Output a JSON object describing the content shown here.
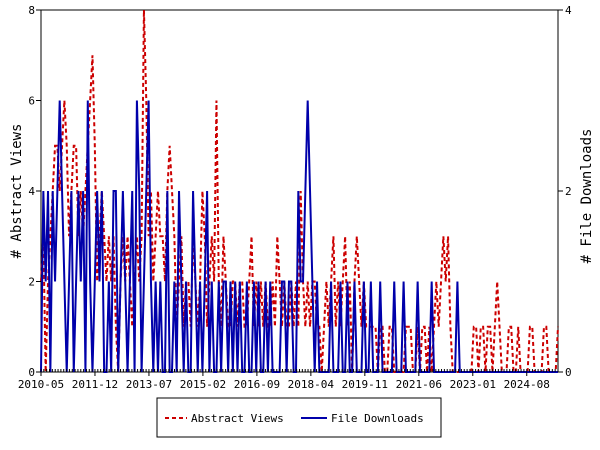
{
  "chart_data": {
    "type": "line",
    "x_ticks": [
      "2010-05",
      "2011-12",
      "2013-07",
      "2015-02",
      "2016-09",
      "2018-04",
      "2019-11",
      "2021-06",
      "2023-01",
      "2024-08"
    ],
    "x_range": [
      "2010-05",
      "2025-07"
    ],
    "left_axis": {
      "label": "# Abstract Views",
      "ylim": [
        0,
        8
      ],
      "ticks": [
        0,
        2,
        4,
        6,
        8
      ]
    },
    "right_axis": {
      "label": "# File Downloads",
      "ylim": [
        0,
        4
      ],
      "ticks": [
        0,
        2,
        4
      ]
    },
    "legend_position": "bottom-center",
    "grid": false,
    "series": [
      {
        "name": "Abstract Views",
        "axis": "left",
        "color": "#cc0000",
        "style": "dashed",
        "values": [
          2,
          3,
          0,
          2,
          3,
          4,
          5,
          5,
          4,
          5,
          6,
          5,
          3,
          4,
          5,
          5,
          3,
          4,
          3,
          4,
          5,
          6,
          7,
          5,
          2,
          3,
          4,
          3,
          2,
          3,
          2,
          3,
          1,
          0,
          2,
          3,
          2,
          3,
          2,
          1,
          2,
          3,
          2,
          3,
          8,
          6,
          3,
          4,
          2,
          3,
          4,
          3,
          3,
          2,
          4,
          5,
          4,
          3,
          1,
          2,
          3,
          1,
          2,
          2,
          1,
          3,
          2,
          1,
          2,
          4,
          3,
          1,
          2,
          3,
          2,
          6,
          2,
          1,
          3,
          2,
          1,
          1,
          2,
          2,
          1,
          2,
          2,
          1,
          1,
          2,
          3,
          1,
          2,
          1,
          2,
          1,
          2,
          1,
          1,
          2,
          1,
          3,
          2,
          1,
          2,
          1,
          1,
          2,
          1,
          2,
          1,
          4,
          2,
          1,
          2,
          1,
          2,
          2,
          1,
          1,
          0,
          1,
          2,
          1,
          2,
          3,
          1,
          2,
          1,
          2,
          3,
          1,
          2,
          0,
          2,
          3,
          2,
          1,
          2,
          1,
          1,
          1,
          1,
          1,
          0,
          1,
          1,
          0,
          0,
          1,
          1,
          0,
          0,
          0,
          0,
          0,
          1,
          1,
          1,
          0,
          0,
          1,
          0,
          1,
          1,
          0,
          1,
          0,
          1,
          2,
          1,
          2,
          3,
          2,
          3,
          1,
          0,
          0,
          0,
          0,
          0,
          0,
          0,
          0,
          0,
          1,
          1,
          0,
          1,
          1,
          0,
          1,
          1,
          0,
          1,
          2,
          1,
          0,
          0,
          0,
          1,
          1,
          0,
          0,
          1,
          0,
          0,
          0,
          0,
          1,
          1,
          0,
          0,
          0,
          0,
          1,
          1,
          0,
          0,
          0,
          0,
          1
        ]
      },
      {
        "name": "File Downloads",
        "axis": "right",
        "color": "#0000aa",
        "style": "solid",
        "values": [
          0,
          2,
          1,
          2,
          0,
          2,
          1,
          2,
          3,
          2,
          1,
          0,
          1,
          2,
          0,
          1,
          2,
          1,
          2,
          0,
          3,
          1,
          0,
          1,
          2,
          1,
          2,
          0,
          0,
          1,
          0,
          2,
          2,
          0,
          1,
          2,
          1,
          0,
          1,
          2,
          0,
          3,
          2,
          0,
          1,
          2,
          3,
          1,
          0,
          1,
          0,
          1,
          0,
          0,
          2,
          0,
          0,
          1,
          0,
          2,
          1,
          0,
          1,
          0,
          0,
          2,
          1,
          0,
          1,
          0,
          1,
          2,
          0,
          1,
          0,
          0,
          1,
          0,
          1,
          1,
          0,
          1,
          0,
          1,
          0,
          1,
          0,
          0,
          1,
          0,
          0,
          1,
          0,
          1,
          0,
          0,
          1,
          0,
          1,
          0,
          0,
          0,
          0,
          1,
          1,
          0,
          1,
          1,
          0,
          0,
          2,
          1,
          1,
          2,
          3,
          2,
          1,
          0,
          1,
          0,
          0,
          0,
          0,
          0,
          1,
          0,
          0,
          0,
          1,
          0,
          0,
          1,
          0,
          0,
          1,
          0,
          0,
          0,
          1,
          0,
          0,
          1,
          0,
          0,
          0,
          1,
          0,
          0,
          0,
          0,
          0,
          1,
          0,
          0,
          0,
          1,
          0,
          0,
          0,
          0,
          0,
          1,
          0,
          0,
          0,
          0,
          0,
          1,
          0,
          0,
          0,
          0,
          0,
          0,
          0,
          0,
          0,
          0,
          1,
          0,
          0,
          0,
          0,
          0,
          0,
          0,
          0,
          0,
          0,
          0,
          0,
          0,
          0,
          0,
          0,
          0,
          0,
          0,
          0,
          0,
          0,
          0,
          0,
          0,
          0,
          0,
          0,
          0,
          0,
          0,
          0,
          0,
          0,
          0,
          0,
          0,
          0,
          0,
          0,
          0,
          0,
          0
        ]
      }
    ]
  }
}
